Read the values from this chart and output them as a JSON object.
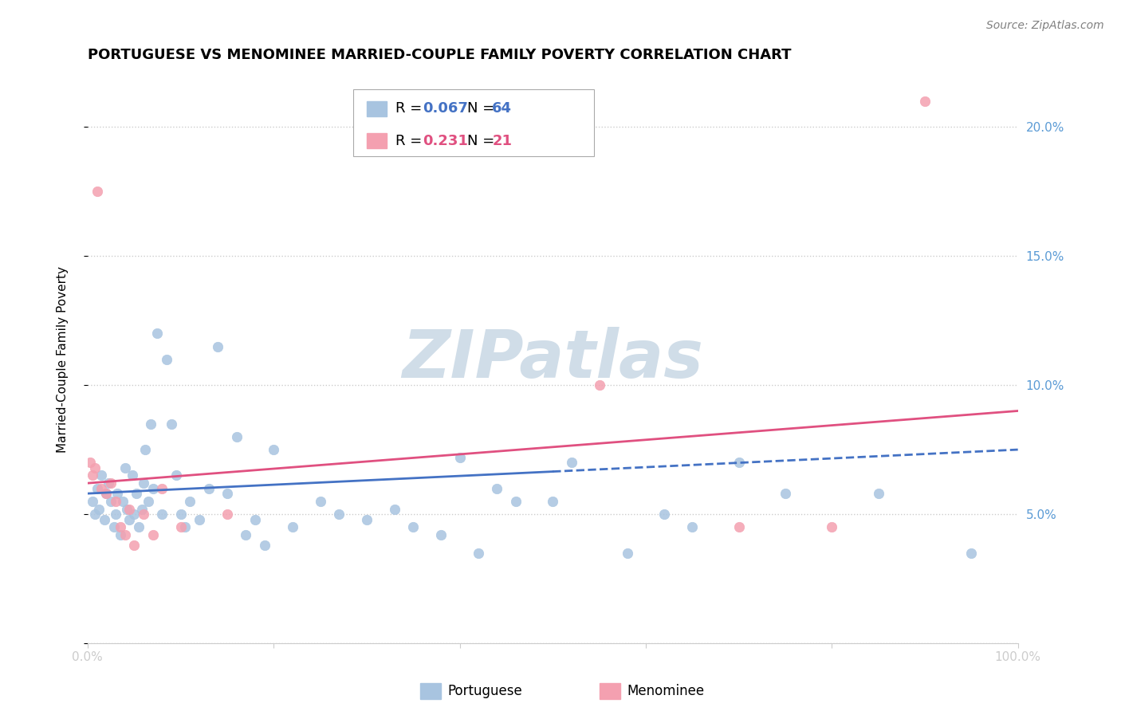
{
  "title": "PORTUGUESE VS MENOMINEE MARRIED-COUPLE FAMILY POVERTY CORRELATION CHART",
  "source": "Source: ZipAtlas.com",
  "ylabel": "Married-Couple Family Poverty",
  "xlim": [
    0,
    100
  ],
  "ylim": [
    0,
    22
  ],
  "yticks": [
    0,
    5,
    10,
    15,
    20
  ],
  "xticks": [
    0,
    20,
    40,
    60,
    80,
    100
  ],
  "ytick_labels": [
    "",
    "5.0%",
    "10.0%",
    "15.0%",
    "20.0%"
  ],
  "background_color": "#ffffff",
  "watermark": "ZIPatlas",
  "portuguese_color": "#a8c4e0",
  "menominee_color": "#f4a0b0",
  "portuguese_line_color": "#4472c4",
  "menominee_line_color": "#e05080",
  "legend_r_port": "0.067",
  "legend_n_port": "64",
  "legend_r_men": "0.231",
  "legend_n_men": "21",
  "portuguese_x": [
    0.5,
    0.8,
    1.0,
    1.2,
    1.5,
    1.8,
    2.0,
    2.2,
    2.5,
    2.8,
    3.0,
    3.2,
    3.5,
    3.8,
    4.0,
    4.2,
    4.5,
    4.8,
    5.0,
    5.2,
    5.5,
    5.8,
    6.0,
    6.2,
    6.5,
    6.8,
    7.0,
    7.5,
    8.0,
    8.5,
    9.0,
    9.5,
    10.0,
    10.5,
    11.0,
    12.0,
    13.0,
    14.0,
    15.0,
    16.0,
    17.0,
    18.0,
    19.0,
    20.0,
    22.0,
    25.0,
    27.0,
    30.0,
    33.0,
    35.0,
    38.0,
    40.0,
    42.0,
    44.0,
    46.0,
    50.0,
    52.0,
    58.0,
    62.0,
    65.0,
    70.0,
    75.0,
    85.0,
    95.0
  ],
  "portuguese_y": [
    5.5,
    5.0,
    6.0,
    5.2,
    6.5,
    4.8,
    5.8,
    6.2,
    5.5,
    4.5,
    5.0,
    5.8,
    4.2,
    5.5,
    6.8,
    5.2,
    4.8,
    6.5,
    5.0,
    5.8,
    4.5,
    5.2,
    6.2,
    7.5,
    5.5,
    8.5,
    6.0,
    12.0,
    5.0,
    11.0,
    8.5,
    6.5,
    5.0,
    4.5,
    5.5,
    4.8,
    6.0,
    11.5,
    5.8,
    8.0,
    4.2,
    4.8,
    3.8,
    7.5,
    4.5,
    5.5,
    5.0,
    4.8,
    5.2,
    4.5,
    4.2,
    7.2,
    3.5,
    6.0,
    5.5,
    5.5,
    7.0,
    3.5,
    5.0,
    4.5,
    7.0,
    5.8,
    5.8,
    3.5
  ],
  "menominee_x": [
    0.3,
    0.5,
    0.8,
    1.0,
    1.5,
    2.0,
    2.5,
    3.0,
    3.5,
    4.0,
    4.5,
    5.0,
    6.0,
    7.0,
    8.0,
    10.0,
    15.0,
    55.0,
    70.0,
    80.0,
    90.0
  ],
  "menominee_y": [
    7.0,
    6.5,
    6.8,
    17.5,
    6.0,
    5.8,
    6.2,
    5.5,
    4.5,
    4.2,
    5.2,
    3.8,
    5.0,
    4.2,
    6.0,
    4.5,
    5.0,
    10.0,
    4.5,
    4.5,
    21.0
  ],
  "port_trend_x0": 0,
  "port_trend_x1": 100,
  "port_trend_y0": 5.8,
  "port_trend_y1": 7.5,
  "men_trend_x0": 0,
  "men_trend_x1": 100,
  "men_trend_y0": 6.2,
  "men_trend_y1": 9.0,
  "port_dashed_start": 50,
  "marker_size": 80,
  "grid_color": "#cccccc",
  "title_fontsize": 13,
  "axis_label_fontsize": 11,
  "tick_fontsize": 11,
  "right_tick_color": "#5b9bd5",
  "watermark_color": "#d0dde8",
  "watermark_fontsize": 60
}
